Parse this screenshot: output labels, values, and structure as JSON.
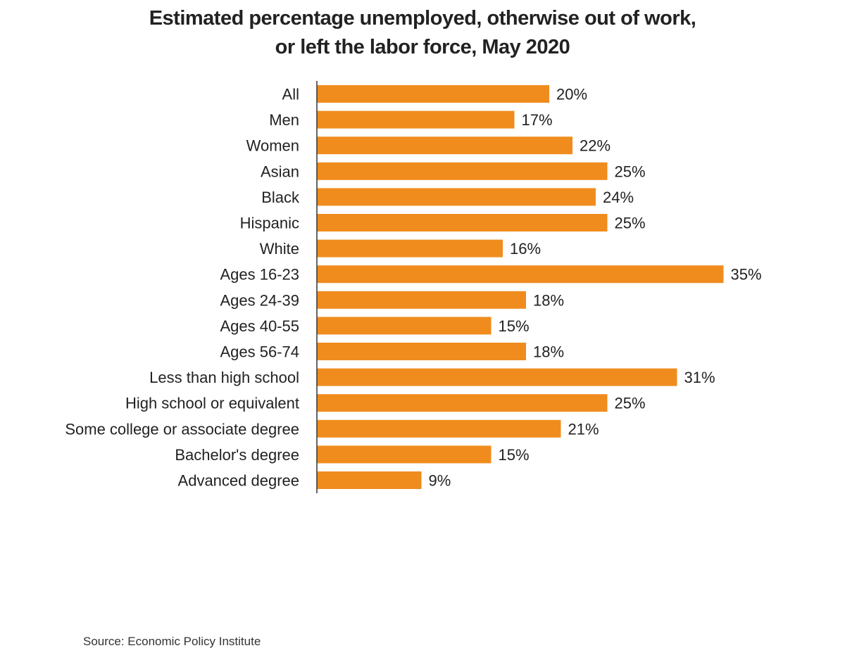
{
  "title_lines": [
    "Estimated percentage unemployed, otherwise out of work,",
    "or left the labor force, May 2020"
  ],
  "source": "Source: Economic Policy Institute",
  "colors": {
    "bar": "#F08C1E",
    "axis": "#333333",
    "text": "#222222"
  },
  "chart_data": {
    "type": "bar",
    "orientation": "horizontal",
    "title": "Estimated percentage unemployed, otherwise out of work, or left the labor force, May 2020",
    "xlabel": "",
    "ylabel": "",
    "xlim": [
      0,
      35
    ],
    "grid": false,
    "legend": "none",
    "value_suffix": "%",
    "groups": [
      {
        "items": [
          {
            "label": "All",
            "value": 20
          }
        ]
      },
      {
        "items": [
          {
            "label": "Men",
            "value": 17
          },
          {
            "label": "Women",
            "value": 22
          }
        ]
      },
      {
        "items": [
          {
            "label": "Asian",
            "value": 25
          },
          {
            "label": "Black",
            "value": 24
          },
          {
            "label": "Hispanic",
            "value": 25
          },
          {
            "label": "White",
            "value": 16
          }
        ]
      },
      {
        "items": [
          {
            "label": "Ages 16-23",
            "value": 35
          },
          {
            "label": "Ages 24-39",
            "value": 18
          },
          {
            "label": "Ages 40-55",
            "value": 15
          },
          {
            "label": "Ages 56-74",
            "value": 18
          }
        ]
      },
      {
        "items": [
          {
            "label": "Less than high school",
            "value": 31
          },
          {
            "label": "High school or equivalent",
            "value": 25
          },
          {
            "label": "Some college or associate degree",
            "value": 21
          },
          {
            "label": "Bachelor's degree",
            "value": 15
          },
          {
            "label": "Advanced degree",
            "value": 9
          }
        ]
      }
    ]
  }
}
